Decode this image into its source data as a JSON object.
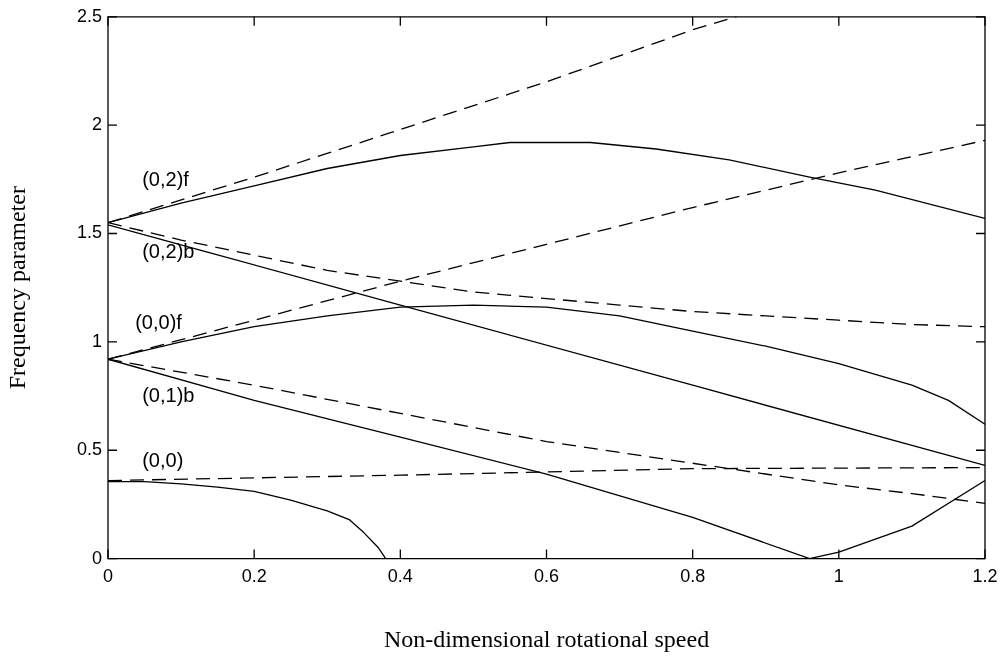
{
  "chart_data": {
    "type": "line",
    "xlabel": "Non-dimensional rotational speed",
    "ylabel": "Frequency parameter",
    "xlim": [
      0,
      1.2
    ],
    "ylim": [
      0,
      2.5
    ],
    "xticks": [
      0,
      0.2,
      0.4,
      0.6,
      0.8,
      1,
      1.2
    ],
    "yticks": [
      0,
      0.5,
      1,
      1.5,
      2,
      2.5
    ],
    "grid": false,
    "legend": false,
    "marker": "none",
    "series": [
      {
        "color": "#000000",
        "line_style": "solid",
        "x": [
          0,
          0.1,
          0.2,
          0.3,
          0.4,
          0.5,
          0.55,
          0.66,
          0.75,
          0.85,
          0.96,
          1.05,
          1.2
        ],
        "values": [
          1.55,
          1.64,
          1.72,
          1.8,
          1.86,
          1.9,
          1.92,
          1.92,
          1.89,
          1.84,
          1.76,
          1.7,
          1.57
        ]
      },
      {
        "color": "#000000",
        "line_style": "solid",
        "x": [
          0,
          0.4,
          0.8,
          1.2
        ],
        "values": [
          1.54,
          1.17,
          0.8,
          0.43
        ]
      },
      {
        "color": "#000000",
        "line_style": "solid",
        "x": [
          0,
          0.1,
          0.2,
          0.3,
          0.4,
          0.5,
          0.6,
          0.7,
          0.8,
          0.9,
          1,
          1.1,
          1.15,
          1.2
        ],
        "values": [
          0.92,
          1,
          1.07,
          1.12,
          1.16,
          1.17,
          1.16,
          1.12,
          1.05,
          0.98,
          0.9,
          0.8,
          0.73,
          0.62
        ]
      },
      {
        "color": "#000000",
        "line_style": "solid",
        "x": [
          0,
          0.2,
          0.4,
          0.6,
          0.8,
          0.96,
          1,
          1.1,
          1.2
        ],
        "values": [
          0.92,
          0.73,
          0.56,
          0.39,
          0.19,
          0,
          0.03,
          0.15,
          0.36
        ]
      },
      {
        "color": "#000000",
        "line_style": "solid",
        "x": [
          0,
          0.05,
          0.1,
          0.15,
          0.2,
          0.25,
          0.3,
          0.33,
          0.35,
          0.37,
          0.38
        ],
        "values": [
          0.355,
          0.355,
          0.345,
          0.33,
          0.31,
          0.27,
          0.22,
          0.18,
          0.12,
          0.05,
          0
        ]
      },
      {
        "color": "#000000",
        "line_style": "dashed",
        "x": [
          0,
          0.2,
          0.4,
          0.6,
          0.8,
          0.86
        ],
        "values": [
          1.55,
          1.76,
          1.98,
          2.2,
          2.44,
          2.5
        ]
      },
      {
        "color": "#000000",
        "line_style": "dashed",
        "x": [
          0,
          0.1,
          0.2,
          0.3,
          0.4,
          0.5,
          0.6,
          0.7,
          0.8,
          0.9,
          1,
          1.1,
          1.2
        ],
        "values": [
          1.55,
          1.47,
          1.4,
          1.33,
          1.28,
          1.23,
          1.2,
          1.17,
          1.14,
          1.12,
          1.1,
          1.08,
          1.07
        ]
      },
      {
        "color": "#000000",
        "line_style": "dashed",
        "x": [
          0,
          0.2,
          0.4,
          0.6,
          0.8,
          1,
          1.2
        ],
        "values": [
          0.92,
          1.1,
          1.28,
          1.45,
          1.62,
          1.78,
          1.93
        ]
      },
      {
        "color": "#000000",
        "line_style": "dashed",
        "x": [
          0,
          0.2,
          0.4,
          0.6,
          0.8,
          1,
          1.1,
          1.2
        ],
        "values": [
          0.92,
          0.8,
          0.67,
          0.54,
          0.44,
          0.34,
          0.3,
          0.255
        ]
      },
      {
        "color": "#000000",
        "line_style": "dashed",
        "x": [
          0,
          0.4,
          0.8,
          1.2
        ],
        "values": [
          0.36,
          0.385,
          0.415,
          0.42
        ]
      }
    ],
    "annotations": [
      "(0,2)f",
      "(0,2)b",
      "(0,0)f",
      "(0,1)b",
      "(0,0)"
    ]
  }
}
